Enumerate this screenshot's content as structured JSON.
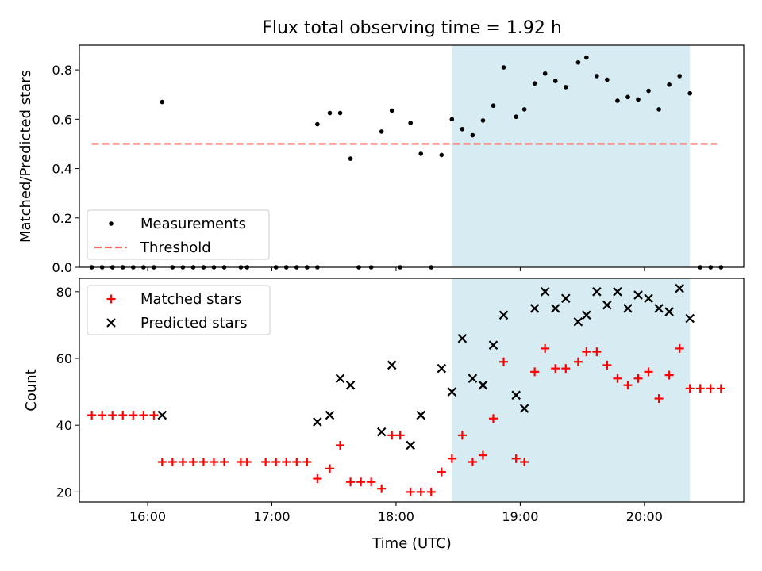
{
  "chart_data": {
    "type": "scatter",
    "title": "Flux total observing time = 1.92 h",
    "xlabel": "Time (UTC)",
    "x_unit": "hours UTC",
    "xlim": [
      "15:27",
      "20:48"
    ],
    "xticks": [
      "16:00",
      "17:00",
      "18:00",
      "19:00",
      "20:00"
    ],
    "highlight_span": {
      "start": "18:27",
      "end": "20:22",
      "color": "#add8e6"
    },
    "panels": [
      {
        "ylabel": "Matched/Predicted stars",
        "ylim": [
          0,
          0.9
        ],
        "yticks": [
          "0.0",
          "0.2",
          "0.4",
          "0.6",
          "0.8"
        ],
        "legend_position": "lower-left",
        "series": [
          {
            "name": "Measurements",
            "marker": "dot",
            "color": "#000000",
            "points": [
              [
                "15:33",
                0
              ],
              [
                "15:38",
                0
              ],
              [
                "15:43",
                0
              ],
              [
                "15:48",
                0
              ],
              [
                "15:53",
                0
              ],
              [
                "15:58",
                0
              ],
              [
                "16:03",
                0
              ],
              [
                "16:07",
                0.67
              ],
              [
                "16:12",
                0
              ],
              [
                "16:17",
                0
              ],
              [
                "16:22",
                0
              ],
              [
                "16:27",
                0
              ],
              [
                "16:32",
                0
              ],
              [
                "16:37",
                0
              ],
              [
                "16:45",
                0
              ],
              [
                "16:48",
                0
              ],
              [
                "17:02",
                0
              ],
              [
                "17:07",
                0
              ],
              [
                "17:12",
                0
              ],
              [
                "17:17",
                0
              ],
              [
                "17:22",
                0
              ],
              [
                "17:22",
                0.58
              ],
              [
                "17:28",
                0.625
              ],
              [
                "17:33",
                0.625
              ],
              [
                "17:38",
                0.44
              ],
              [
                "17:42",
                0
              ],
              [
                "17:48",
                0
              ],
              [
                "17:53",
                0.55
              ],
              [
                "17:58",
                0.635
              ],
              [
                "18:02",
                0
              ],
              [
                "18:07",
                0.585
              ],
              [
                "18:12",
                0.46
              ],
              [
                "18:17",
                0
              ],
              [
                "18:22",
                0.455
              ],
              [
                "18:27",
                0.6
              ],
              [
                "18:32",
                0.56
              ],
              [
                "18:37",
                0.535
              ],
              [
                "18:42",
                0.595
              ],
              [
                "18:47",
                0.655
              ],
              [
                "18:52",
                0.81
              ],
              [
                "18:58",
                0.61
              ],
              [
                "19:02",
                0.64
              ],
              [
                "19:07",
                0.745
              ],
              [
                "19:12",
                0.785
              ],
              [
                "19:17",
                0.755
              ],
              [
                "19:22",
                0.73
              ],
              [
                "19:28",
                0.83
              ],
              [
                "19:32",
                0.85
              ],
              [
                "19:37",
                0.775
              ],
              [
                "19:42",
                0.76
              ],
              [
                "19:47",
                0.675
              ],
              [
                "19:52",
                0.69
              ],
              [
                "19:57",
                0.68
              ],
              [
                "20:02",
                0.715
              ],
              [
                "20:07",
                0.64
              ],
              [
                "20:12",
                0.74
              ],
              [
                "20:17",
                0.775
              ],
              [
                "20:22",
                0.705
              ],
              [
                "20:27",
                0
              ],
              [
                "20:32",
                0
              ],
              [
                "20:37",
                0
              ]
            ]
          },
          {
            "name": "Threshold",
            "marker": "dashed-line",
            "color": "#ff6666",
            "points": [
              [
                "15:33",
                0.5
              ],
              [
                "20:35",
                0.5
              ]
            ]
          }
        ]
      },
      {
        "ylabel": "Count",
        "ylim": [
          17,
          84
        ],
        "yticks": [
          "20",
          "40",
          "60",
          "80"
        ],
        "legend_position": "upper-left",
        "series": [
          {
            "name": "Matched stars",
            "marker": "plus",
            "color": "#ff0000",
            "points": [
              [
                "15:33",
                43
              ],
              [
                "15:38",
                43
              ],
              [
                "15:43",
                43
              ],
              [
                "15:48",
                43
              ],
              [
                "15:53",
                43
              ],
              [
                "15:58",
                43
              ],
              [
                "16:03",
                43
              ],
              [
                "16:07",
                29
              ],
              [
                "16:12",
                29
              ],
              [
                "16:17",
                29
              ],
              [
                "16:22",
                29
              ],
              [
                "16:27",
                29
              ],
              [
                "16:32",
                29
              ],
              [
                "16:37",
                29
              ],
              [
                "16:45",
                29
              ],
              [
                "16:48",
                29
              ],
              [
                "16:57",
                29
              ],
              [
                "17:02",
                29
              ],
              [
                "17:07",
                29
              ],
              [
                "17:12",
                29
              ],
              [
                "17:17",
                29
              ],
              [
                "17:22",
                24
              ],
              [
                "17:28",
                27
              ],
              [
                "17:33",
                34
              ],
              [
                "17:38",
                23
              ],
              [
                "17:43",
                23
              ],
              [
                "17:48",
                23
              ],
              [
                "17:53",
                21
              ],
              [
                "17:58",
                37
              ],
              [
                "18:02",
                37
              ],
              [
                "18:07",
                20
              ],
              [
                "18:12",
                20
              ],
              [
                "18:17",
                20
              ],
              [
                "18:22",
                26
              ],
              [
                "18:27",
                30
              ],
              [
                "18:32",
                37
              ],
              [
                "18:37",
                29
              ],
              [
                "18:42",
                31
              ],
              [
                "18:47",
                42
              ],
              [
                "18:52",
                59
              ],
              [
                "18:58",
                30
              ],
              [
                "19:02",
                29
              ],
              [
                "19:07",
                56
              ],
              [
                "19:12",
                63
              ],
              [
                "19:17",
                57
              ],
              [
                "19:22",
                57
              ],
              [
                "19:28",
                59
              ],
              [
                "19:32",
                62
              ],
              [
                "19:37",
                62
              ],
              [
                "19:42",
                58
              ],
              [
                "19:47",
                54
              ],
              [
                "19:52",
                52
              ],
              [
                "19:57",
                54
              ],
              [
                "20:02",
                56
              ],
              [
                "20:07",
                48
              ],
              [
                "20:12",
                55
              ],
              [
                "20:17",
                63
              ],
              [
                "20:22",
                51
              ],
              [
                "20:27",
                51
              ],
              [
                "20:32",
                51
              ],
              [
                "20:37",
                51
              ]
            ]
          },
          {
            "name": "Predicted stars",
            "marker": "x",
            "color": "#000000",
            "points": [
              [
                "16:07",
                43
              ],
              [
                "17:22",
                41
              ],
              [
                "17:28",
                43
              ],
              [
                "17:33",
                54
              ],
              [
                "17:38",
                52
              ],
              [
                "17:53",
                38
              ],
              [
                "17:58",
                58
              ],
              [
                "18:07",
                34
              ],
              [
                "18:12",
                43
              ],
              [
                "18:22",
                57
              ],
              [
                "18:27",
                50
              ],
              [
                "18:32",
                66
              ],
              [
                "18:37",
                54
              ],
              [
                "18:42",
                52
              ],
              [
                "18:47",
                64
              ],
              [
                "18:52",
                73
              ],
              [
                "18:58",
                49
              ],
              [
                "19:02",
                45
              ],
              [
                "19:07",
                75
              ],
              [
                "19:12",
                80
              ],
              [
                "19:17",
                75
              ],
              [
                "19:22",
                78
              ],
              [
                "19:28",
                71
              ],
              [
                "19:32",
                73
              ],
              [
                "19:37",
                80
              ],
              [
                "19:42",
                76
              ],
              [
                "19:47",
                80
              ],
              [
                "19:52",
                75
              ],
              [
                "19:57",
                79
              ],
              [
                "20:02",
                78
              ],
              [
                "20:07",
                75
              ],
              [
                "20:12",
                74
              ],
              [
                "20:17",
                81
              ],
              [
                "20:22",
                72
              ]
            ]
          }
        ]
      }
    ]
  }
}
